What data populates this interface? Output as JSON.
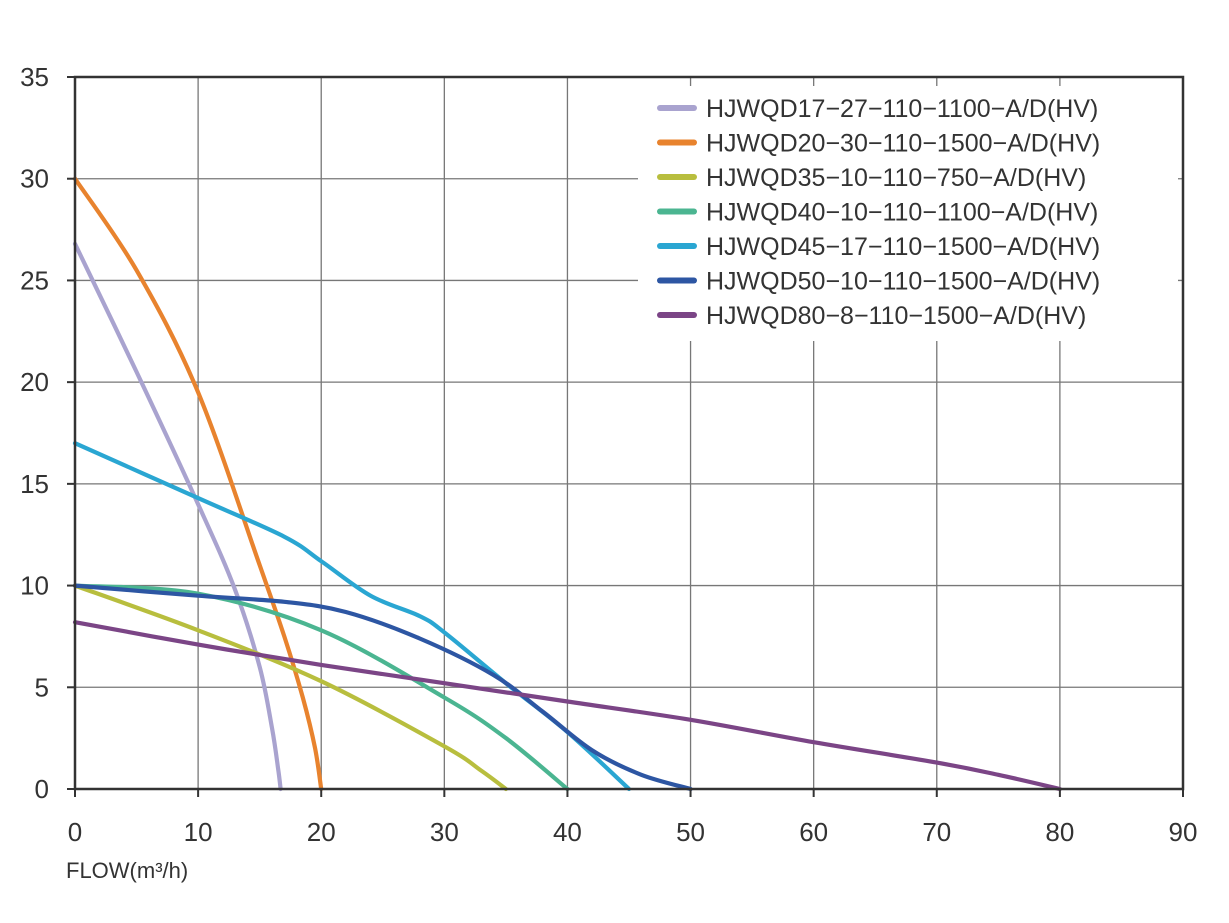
{
  "chart_data": {
    "type": "line",
    "title": "",
    "xlabel": "FLOW(m³/h)",
    "ylabel": "",
    "xlim": [
      0,
      90
    ],
    "ylim": [
      0,
      35
    ],
    "xticks": [
      "0",
      "10",
      "20",
      "30",
      "40",
      "50",
      "60",
      "70",
      "80",
      "90"
    ],
    "yticks": [
      "0",
      "5",
      "10",
      "15",
      "20",
      "25",
      "30",
      "35"
    ],
    "grid": true,
    "legend_position": "top-right",
    "series": [
      {
        "name": "HJWQD17−27−110−1100−A/D(HV)",
        "color": "#a9a3cf",
        "x": [
          0,
          5,
          10,
          13,
          15,
          16,
          16.5,
          16.7
        ],
        "y": [
          26.8,
          20.5,
          14,
          9.8,
          6,
          3,
          1,
          0
        ]
      },
      {
        "name": "HJWQD20−30−110−1500−A/D(HV)",
        "color": "#e8832e",
        "x": [
          0,
          5,
          10,
          15,
          17,
          18.5,
          19.5,
          20
        ],
        "y": [
          30,
          25.5,
          19.5,
          11,
          7.5,
          4.5,
          2,
          0
        ]
      },
      {
        "name": "HJWQD35−10−110−750−A/D(HV)",
        "color": "#b8be3e",
        "x": [
          0,
          10,
          20,
          30,
          33,
          35
        ],
        "y": [
          10,
          7.8,
          5.3,
          2.1,
          0.9,
          0
        ]
      },
      {
        "name": "HJWQD40−10−110−1100−A/D(HV)",
        "color": "#4bb591",
        "x": [
          0,
          10,
          20,
          30,
          35,
          40
        ],
        "y": [
          10,
          9.6,
          7.8,
          4.5,
          2.5,
          0
        ]
      },
      {
        "name": "HJWQD45−17−110−1500−A/D(HV)",
        "color": "#2aa6d2",
        "x": [
          0,
          10,
          17,
          20,
          24,
          28,
          30,
          35,
          40,
          45
        ],
        "y": [
          17,
          14.3,
          12.4,
          11.2,
          9.5,
          8.5,
          7.7,
          5.2,
          2.8,
          0
        ]
      },
      {
        "name": "HJWQD50−10−110−1500−A/D(HV)",
        "color": "#2d56a3",
        "x": [
          0,
          10,
          17,
          22,
          28,
          34,
          38,
          42,
          46,
          50
        ],
        "y": [
          10,
          9.5,
          9.2,
          8.7,
          7.4,
          5.6,
          3.8,
          1.9,
          0.7,
          0
        ]
      },
      {
        "name": "HJWQD80−8−110−1500−A/D(HV)",
        "color": "#7b4586",
        "x": [
          0,
          10,
          20,
          30,
          40,
          50,
          60,
          70,
          75,
          80
        ],
        "y": [
          8.2,
          7.1,
          6.1,
          5.2,
          4.3,
          3.4,
          2.3,
          1.3,
          0.7,
          0
        ]
      }
    ]
  }
}
